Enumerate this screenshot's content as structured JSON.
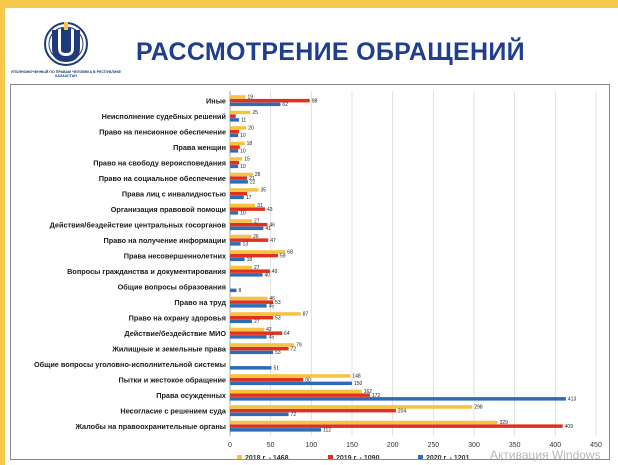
{
  "header": {
    "title": "РАССМОТРЕНИЕ ОБРАЩЕНИЙ",
    "logo_text": "УПОЛНОМОЧЕННЫЙ ПО ПРАВАМ ЧЕЛОВЕКА В РЕСПУБЛИКЕ КАЗАХСТАН"
  },
  "watermark": "Активация Windows",
  "chart_data": {
    "type": "bar",
    "orientation": "horizontal",
    "categories": [
      "Иные",
      "Неисполнение судебных решений",
      "Право на пенсионное обеспечение",
      "Права женщин",
      "Право на свободу вероисповедания",
      "Право на социальное обеспечение",
      "Права лиц с инвалидностью",
      "Организация правовой помощи",
      "Действия/бездействие центральных госорганов",
      "Право на получение информации",
      "Права несовершеннолетних",
      "Вопросы гражданства и документирования",
      "Общие вопросы образования",
      "Право на труд",
      "Право на охрану здоровья",
      "Действие/бездействие МИО",
      "Жилищные и земельные  права",
      "Общие вопросы уголовно-исполнительной системы",
      "Пытки и жестокое обращение",
      "Права осужденных",
      "Несогласие с решением суда",
      "Жалобы на правоохранительные органы"
    ],
    "series": [
      {
        "name": "2018 г. - 1468",
        "color": "#f5c342",
        "values": [
          19,
          25,
          20,
          18,
          15,
          28,
          35,
          31,
          27,
          26,
          68,
          27,
          null,
          46,
          87,
          42,
          79,
          0,
          148,
          162,
          298,
          329
        ]
      },
      {
        "name": "2019 г. - 1090",
        "color": "#e0301e",
        "values": [
          98,
          7,
          11,
          12,
          11,
          21,
          21,
          43,
          46,
          47,
          59,
          49,
          null,
          53,
          53,
          64,
          72,
          0,
          90,
          172,
          204,
          409
        ]
      },
      {
        "name": "2020 г. - 1201",
        "color": "#2e6db3",
        "values": [
          62,
          11,
          10,
          10,
          10,
          22,
          17,
          10,
          41,
          13,
          18,
          40,
          8,
          45,
          27,
          45,
          53,
          51,
          150,
          413,
          72,
          112
        ]
      }
    ],
    "value_labels": [
      [
        "19",
        "98",
        "62"
      ],
      [
        "25",
        "",
        "11"
      ],
      [
        "20",
        "",
        "10"
      ],
      [
        "18",
        "",
        "10"
      ],
      [
        "15",
        "",
        "10"
      ],
      [
        "28",
        "21",
        "22"
      ],
      [
        "35",
        "",
        "17"
      ],
      [
        "31",
        "43",
        "10"
      ],
      [
        "27",
        "46",
        "41"
      ],
      [
        "26",
        "47",
        "13"
      ],
      [
        "68",
        "59",
        "18"
      ],
      [
        "27",
        "49",
        "40"
      ],
      [
        "",
        "",
        "8"
      ],
      [
        "46",
        "53",
        "45"
      ],
      [
        "87",
        "53",
        "27"
      ],
      [
        "42",
        "64",
        "45"
      ],
      [
        "79",
        "72",
        "53"
      ],
      [
        "",
        "",
        "51"
      ],
      [
        "148",
        "90",
        "150"
      ],
      [
        "162",
        "172",
        "413"
      ],
      [
        "298",
        "204",
        "72"
      ],
      [
        "329",
        "409",
        "112"
      ]
    ],
    "xlim": [
      0,
      450
    ],
    "xticks": [
      0,
      50,
      100,
      150,
      200,
      250,
      300,
      350,
      400,
      450
    ],
    "grid": true,
    "legend_position": "bottom"
  }
}
